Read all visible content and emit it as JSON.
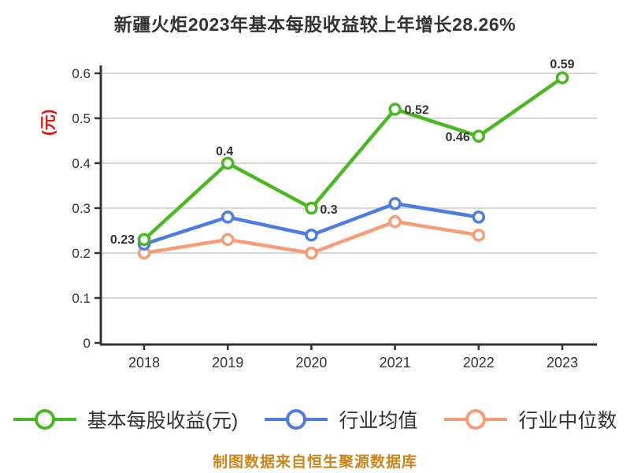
{
  "title": "新疆火炬2023年基本每股收益较上年增长28.26%",
  "footer": "制图数据来自恒生聚源数据库",
  "y_axis": {
    "unit": "(元)",
    "unit_color": "#e31212"
  },
  "legend": [
    {
      "label": "基本每股收益(元)",
      "color": "#4bb724"
    },
    {
      "label": "行业均值",
      "color": "#4e7ce0"
    },
    {
      "label": "行业中位数",
      "color": "#f59d77"
    }
  ],
  "colors": {
    "green": "#4bb724",
    "blue": "#4e7ce0",
    "orange": "#f59d77",
    "grid": "#d8d8d8",
    "axis": "#333333",
    "text": "#333333",
    "footer": "#c8861d",
    "unit_label": "#e31212"
  },
  "chart_data": {
    "type": "line",
    "title": "新疆火炬2023年基本每股收益较上年增长28.26%",
    "categories": [
      "2018",
      "2019",
      "2020",
      "2021",
      "2022",
      "2023"
    ],
    "series": [
      {
        "name": "基本每股收益(元)",
        "color": "#4bb724",
        "values": [
          0.23,
          0.4,
          0.3,
          0.52,
          0.46,
          0.59
        ],
        "point_labels": [
          "0.23",
          "0.4",
          "0.3",
          "0.52",
          "0.46",
          "0.59"
        ]
      },
      {
        "name": "行业均值",
        "color": "#4e7ce0",
        "values": [
          0.22,
          0.28,
          0.24,
          0.31,
          0.28
        ]
      },
      {
        "name": "行业中位数",
        "color": "#f59d77",
        "values": [
          0.2,
          0.23,
          0.2,
          0.27,
          0.24
        ]
      }
    ],
    "xlabel": "",
    "ylabel": "(元)",
    "ylim": [
      0,
      0.6
    ],
    "yticks": [
      "0",
      "0.1",
      "0.2",
      "0.3",
      "0.4",
      "0.5",
      "0.6"
    ],
    "grid": true,
    "legend_position": "bottom",
    "marker": "circle-white-fill"
  }
}
